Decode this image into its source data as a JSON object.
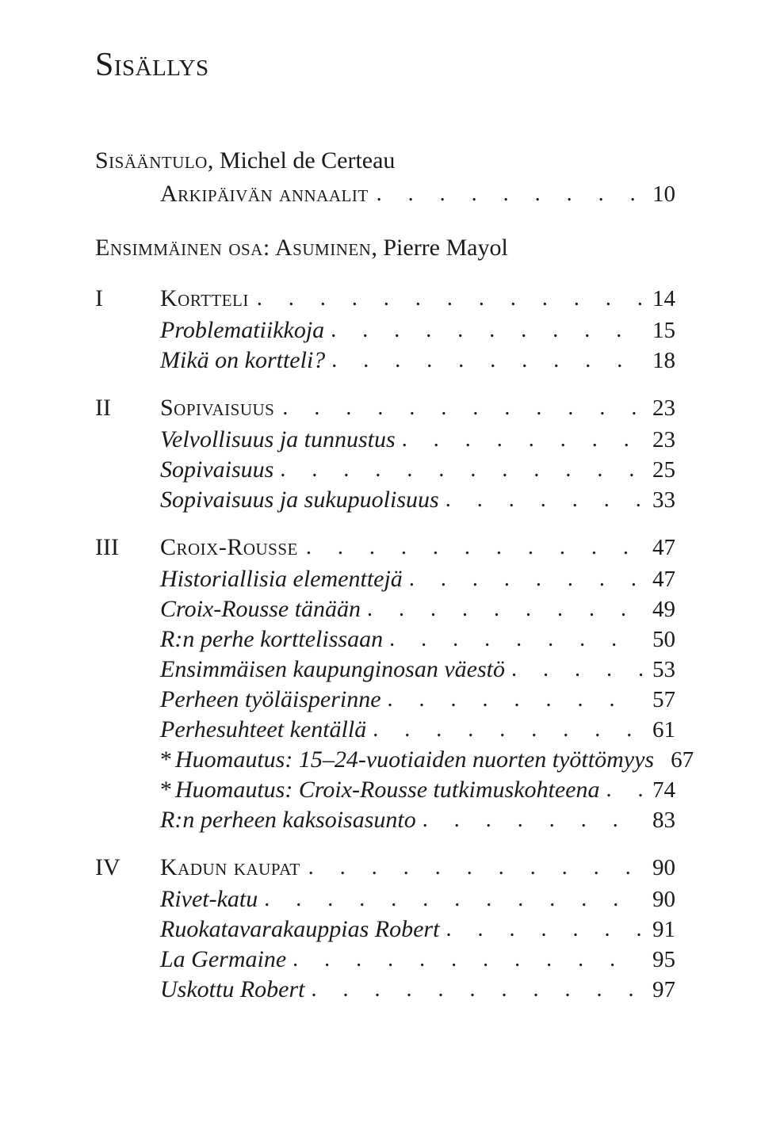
{
  "title": "Sisällys",
  "intro": {
    "author_sc": "Sisääntulo",
    "author_rest": ", Michel de Certeau",
    "annaalit_label": "Arkipäivän annaalit",
    "annaalit_page": "10"
  },
  "part": {
    "sc": "Ensimmäinen osa: Asuminen",
    "rest": ", Pierre Mayol"
  },
  "chapters": [
    {
      "roman": "I",
      "title": "Kortteli",
      "page": "14",
      "subs": [
        {
          "label": "Problematiikkoja",
          "page": "15"
        },
        {
          "label": "Mikä on kortteli?",
          "page": "18"
        }
      ]
    },
    {
      "roman": "II",
      "title": "Sopivaisuus",
      "page": "23",
      "subs": [
        {
          "label": "Velvollisuus ja tunnustus",
          "page": "23"
        },
        {
          "label": "Sopivaisuus",
          "page": "25"
        },
        {
          "label": "Sopivaisuus ja sukupuolisuus",
          "page": "33"
        }
      ]
    },
    {
      "roman": "III",
      "title": "Croix-Rousse",
      "page": "47",
      "subs": [
        {
          "label": "Historiallisia elementtejä",
          "page": "47"
        },
        {
          "label": "Croix-Rousse tänään",
          "page": "49"
        },
        {
          "label": "R:n perhe korttelissaan",
          "page": "50"
        },
        {
          "label": "Ensimmäisen kaupunginosan väestö",
          "page": "53"
        },
        {
          "label": "Perheen työläisperinne",
          "page": "57"
        },
        {
          "label": "Perhesuhteet kentällä",
          "page": "61"
        },
        {
          "star": true,
          "label": "Huomautus: 15–24-vuotiaiden nuorten työttömyys",
          "page": "67"
        },
        {
          "star": true,
          "label": "Huomautus: Croix-Rousse tutkimuskohteena",
          "page": "74"
        },
        {
          "label": "R:n perheen kaksoisasunto",
          "page": "83"
        }
      ]
    },
    {
      "roman": "IV",
      "title": "Kadun kaupat",
      "page": "90",
      "subs": [
        {
          "label": "Rivet-katu",
          "page": "90"
        },
        {
          "label": "Ruokatavarakauppias Robert",
          "page": "91"
        },
        {
          "label": "La Germaine",
          "page": "95"
        },
        {
          "label": "Uskottu Robert",
          "page": "97"
        }
      ]
    }
  ]
}
